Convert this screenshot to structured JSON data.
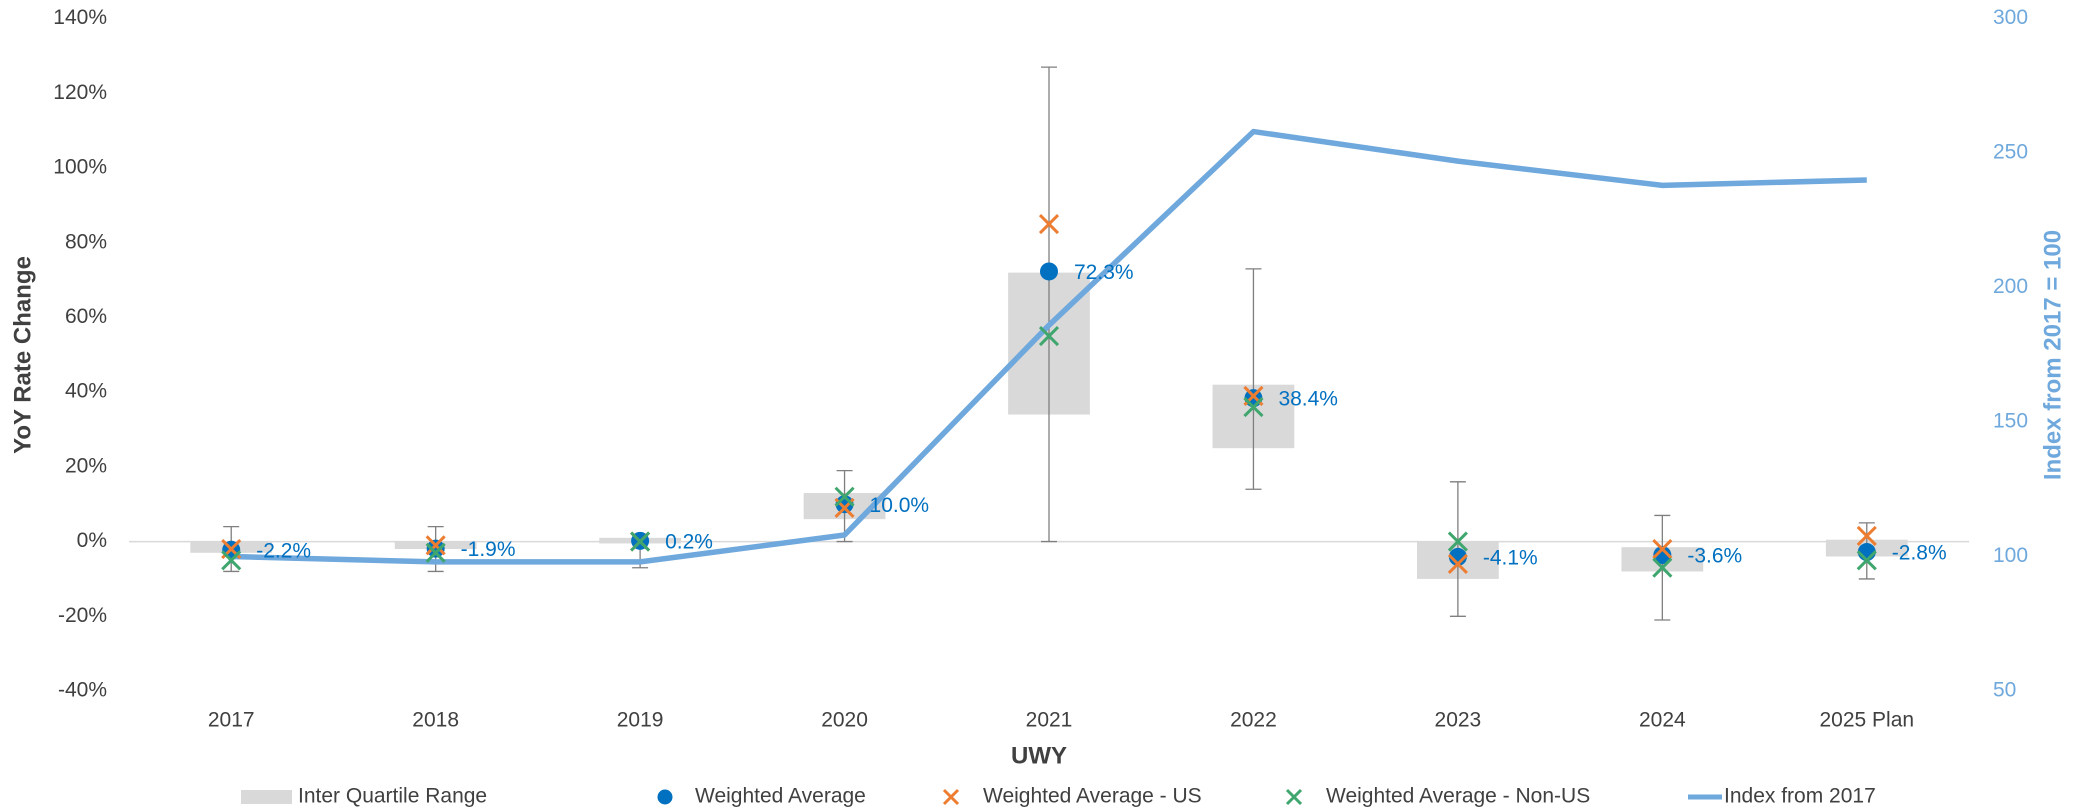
{
  "chart_data": {
    "type": "combo",
    "categories": [
      "2017",
      "2018",
      "2019",
      "2020",
      "2021",
      "2022",
      "2023",
      "2024",
      "2025 Plan"
    ],
    "x_label": "UWY",
    "y_label": "YoY Rate Change",
    "y2_label": "Index from 2017 = 100",
    "ylim": [
      -40,
      140
    ],
    "yticks": [
      {
        "value": -40,
        "label": "-40%"
      },
      {
        "value": -20,
        "label": "-20%"
      },
      {
        "value": 0,
        "label": "0%"
      },
      {
        "value": 20,
        "label": "20%"
      },
      {
        "value": 40,
        "label": "40%"
      },
      {
        "value": 60,
        "label": "60%"
      },
      {
        "value": 80,
        "label": "80%"
      },
      {
        "value": 100,
        "label": "100%"
      },
      {
        "value": 120,
        "label": "120%"
      },
      {
        "value": 140,
        "label": "140%"
      }
    ],
    "y2lim": [
      50,
      300
    ],
    "y2ticks": [
      50,
      100,
      150,
      200,
      250,
      300
    ],
    "iqr": {
      "name": "Inter Quartile Range",
      "color": "#d9d9d9",
      "low": [
        -3,
        -2,
        -0.5,
        6,
        34,
        25,
        -10,
        -8,
        -4
      ],
      "high": [
        0,
        0,
        1,
        13,
        72,
        42,
        0,
        -1.5,
        0.5
      ]
    },
    "range": {
      "color": "#7f7f7f",
      "min": [
        -8,
        -8,
        -7,
        0,
        0,
        14,
        -20,
        -21,
        -10
      ],
      "max": [
        4,
        4,
        2,
        19,
        127,
        73,
        16,
        7,
        5
      ]
    },
    "series": [
      {
        "name": "Weighted Average",
        "type": "dot",
        "color": "#0070c0",
        "values": [
          -2.2,
          -1.9,
          0.2,
          10.0,
          72.3,
          38.4,
          -4.1,
          -3.6,
          -2.8
        ],
        "value_labels": [
          "-2.2%",
          "-1.9%",
          "0.2%",
          "10.0%",
          "72.3%",
          "38.4%",
          "-4.1%",
          "-3.6%",
          "-2.8%"
        ]
      },
      {
        "name": "Weighted Average - US",
        "type": "cross",
        "color": "#ed7d31",
        "values": [
          -2,
          -1,
          0,
          9,
          85,
          39,
          -6,
          -2,
          1.5
        ]
      },
      {
        "name": "Weighted Average - Non-US",
        "type": "cross",
        "color": "#3fa66e",
        "values": [
          -5,
          -3,
          0,
          12,
          55,
          36,
          0,
          -7,
          -5
        ]
      },
      {
        "name": "Index from 2017",
        "type": "line",
        "axis": "y2",
        "color": "#6fa8dc",
        "values": [
          100,
          98,
          98,
          108,
          186,
          258,
          247,
          238,
          240
        ]
      }
    ]
  }
}
